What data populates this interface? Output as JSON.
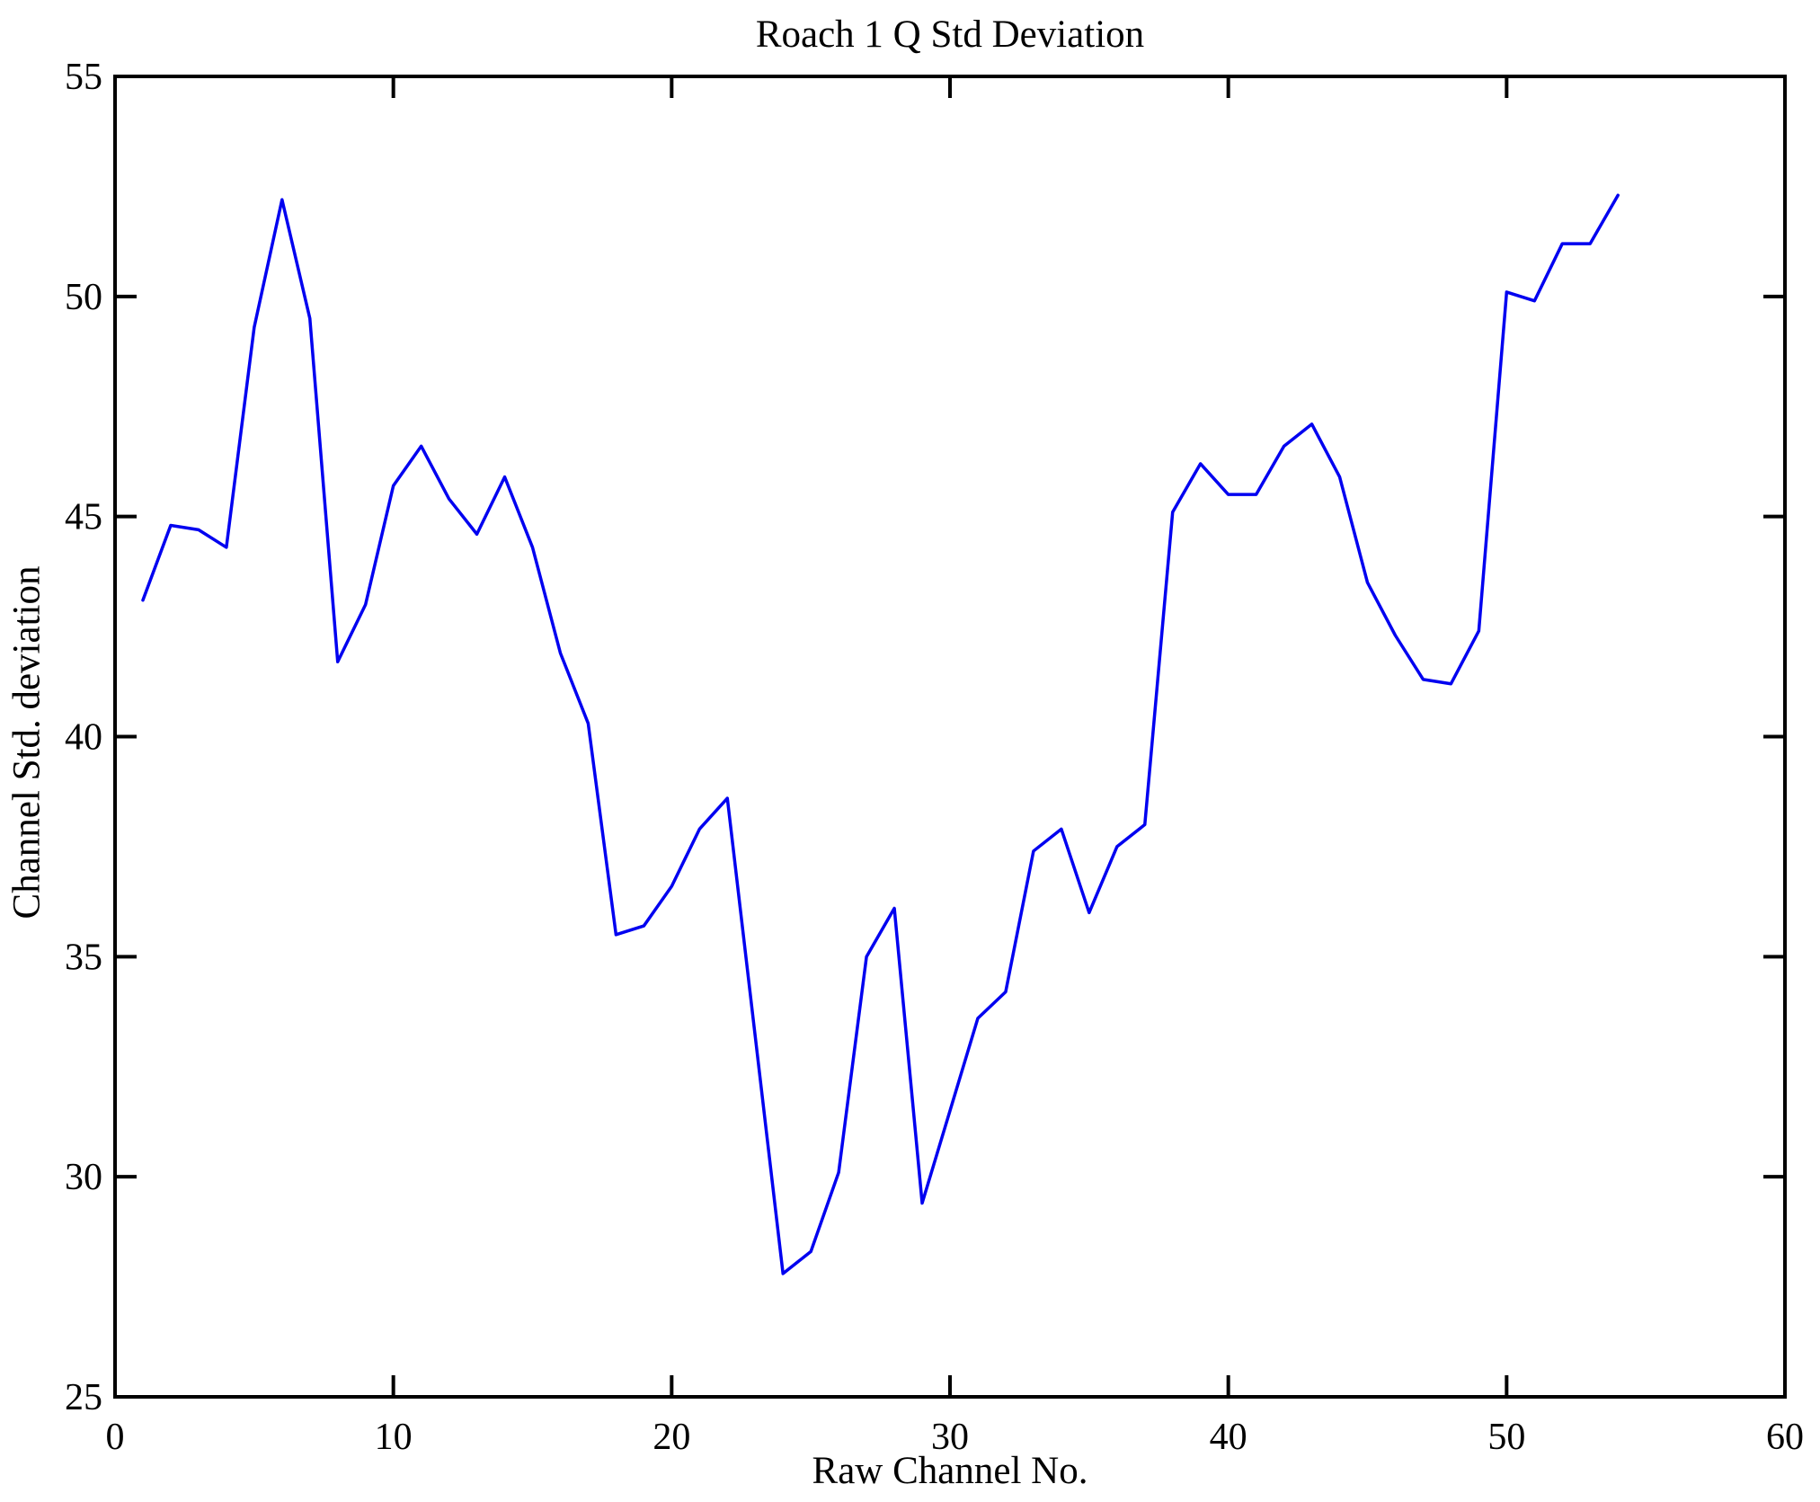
{
  "chart_data": {
    "type": "line",
    "title": "Roach 1 Q Std Deviation",
    "xlabel": "Raw Channel No.",
    "ylabel": "Channel Std. deviation",
    "xlim": [
      0,
      60
    ],
    "ylim": [
      25,
      55
    ],
    "xticks": [
      0,
      10,
      20,
      30,
      40,
      50,
      60
    ],
    "yticks": [
      25,
      30,
      35,
      40,
      45,
      50,
      55
    ],
    "grid": false,
    "legend": null,
    "line_color": "#0000f0",
    "axis_color": "#000000",
    "background_color": "#ffffff",
    "x": [
      1,
      2,
      3,
      4,
      5,
      6,
      7,
      8,
      9,
      10,
      11,
      12,
      13,
      14,
      15,
      16,
      17,
      18,
      19,
      20,
      21,
      22,
      23,
      24,
      25,
      26,
      27,
      28,
      29,
      30,
      31,
      32,
      33,
      34,
      35,
      36,
      37,
      38,
      39,
      40,
      41,
      42,
      43,
      44,
      45,
      46,
      47,
      48,
      49,
      50,
      51,
      52,
      53,
      54
    ],
    "series": [
      {
        "name": "channel-std-deviation",
        "values": [
          43.1,
          44.8,
          44.7,
          44.3,
          49.3,
          52.2,
          49.5,
          41.7,
          43.0,
          45.7,
          46.6,
          45.4,
          44.6,
          45.9,
          44.3,
          41.9,
          40.3,
          35.5,
          35.7,
          36.6,
          37.9,
          38.6,
          33.2,
          27.8,
          28.3,
          30.1,
          35.0,
          36.1,
          29.4,
          31.5,
          33.6,
          34.2,
          37.4,
          37.9,
          36.0,
          37.5,
          38.0,
          45.1,
          46.2,
          45.5,
          45.5,
          46.6,
          47.1,
          45.9,
          43.5,
          42.3,
          41.3,
          41.2,
          42.4,
          50.1,
          49.9,
          51.2,
          51.2,
          52.3
        ]
      }
    ]
  }
}
